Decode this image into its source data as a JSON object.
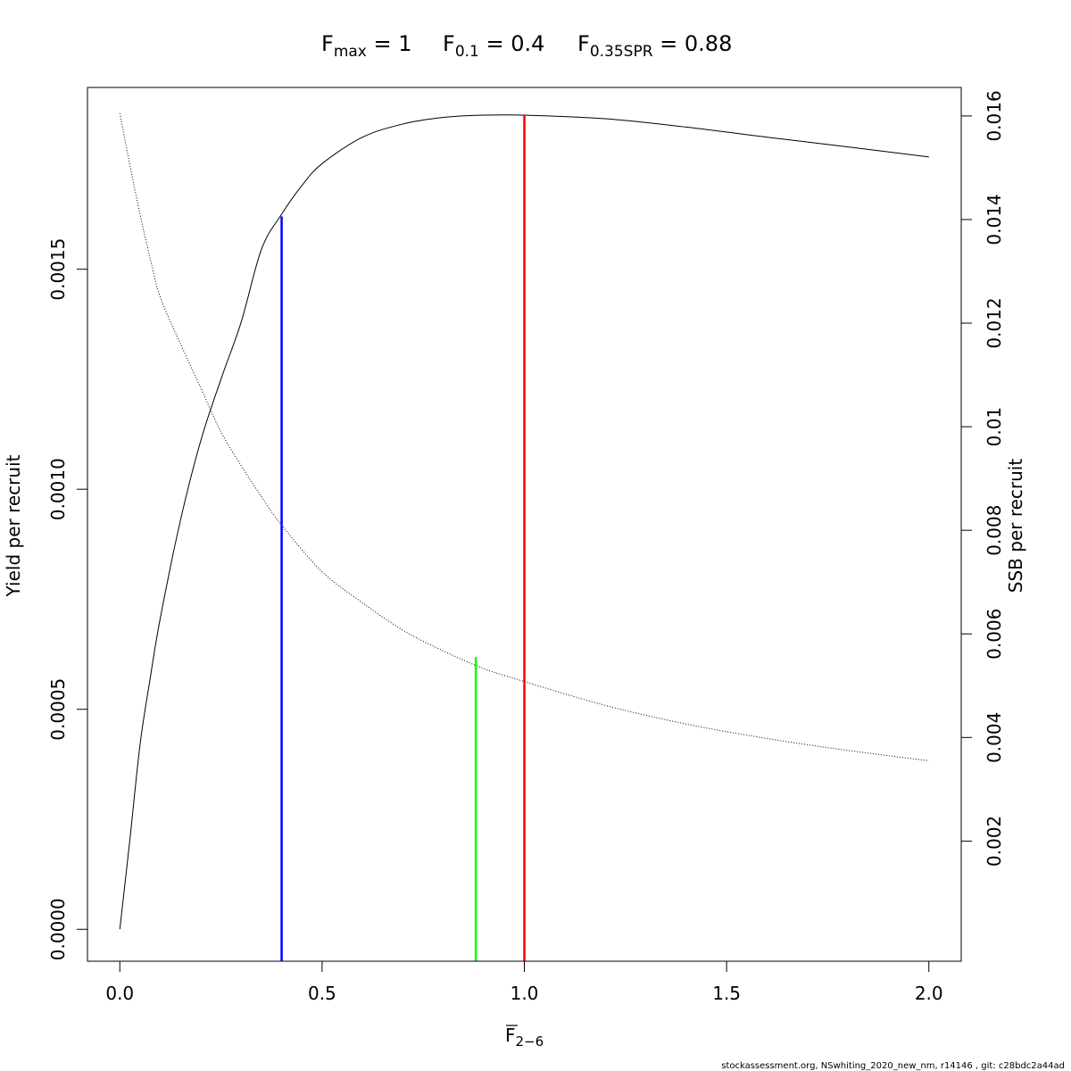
{
  "title": {
    "fmax": {
      "base": "F",
      "sub": "max",
      "rest": " = 1"
    },
    "f01": {
      "base": "F",
      "sub": "0.1",
      "rest": " = 0.4"
    },
    "f35": {
      "base": "F",
      "sub": "0.35SPR",
      "rest": " = 0.88"
    }
  },
  "footer": "stockassessment.org, NSwhiting_2020_new_nm, r14146 , git: c28bdc2a44ad",
  "chart_data": {
    "type": "line",
    "xlabel": {
      "base": "F",
      "sub": "2−6"
    },
    "ylabel_left": "Yield per recruit",
    "ylabel_right": "SSB per recruit",
    "xlim": [
      -0.08,
      2.08
    ],
    "ylim_left": [
      -7.25e-05,
      0.001913
    ],
    "ylim_right": [
      -0.00032,
      0.01655
    ],
    "x_ticks": [
      "0.0",
      "0.5",
      "1.0",
      "1.5",
      "2.0"
    ],
    "y_left_ticks": [
      "0.0000",
      "0.0005",
      "0.0010",
      "0.0015"
    ],
    "y_right_ticks": [
      "0.002",
      "0.004",
      "0.006",
      "0.008",
      "0.01",
      "0.012",
      "0.014",
      "0.016"
    ],
    "grid": false,
    "series": [
      {
        "axis": "left",
        "style": "solid",
        "color": "#000000",
        "x": [
          0.0,
          0.025,
          0.05,
          0.075,
          0.1,
          0.15,
          0.2,
          0.25,
          0.3,
          0.35,
          0.4,
          0.45,
          0.5,
          0.6,
          0.7,
          0.8,
          0.9,
          1.0,
          1.2,
          1.4,
          1.6,
          1.8,
          2.0
        ],
        "y": [
          0.0,
          0.000205,
          0.00042,
          0.00057,
          0.000707,
          0.00093,
          0.00111,
          0.00125,
          0.00138,
          0.001545,
          0.001625,
          0.00169,
          0.00174,
          0.0018,
          0.00183,
          0.001845,
          0.00185,
          0.00185,
          0.001842,
          0.001823,
          0.0018,
          0.001778,
          0.001755
        ]
      },
      {
        "axis": "right",
        "style": "dotted",
        "color": "#000000",
        "x": [
          0.0,
          0.025,
          0.05,
          0.075,
          0.1,
          0.15,
          0.2,
          0.25,
          0.3,
          0.35,
          0.4,
          0.5,
          0.6,
          0.7,
          0.8,
          0.9,
          1.0,
          1.2,
          1.4,
          1.6,
          1.8,
          2.0
        ],
        "y": [
          0.01605,
          0.01505,
          0.0141,
          0.01325,
          0.0125,
          0.0116,
          0.01075,
          0.0099,
          0.00925,
          0.00865,
          0.0081,
          0.0072,
          0.0066,
          0.00607,
          0.00567,
          0.00533,
          0.00508,
          0.00462,
          0.00426,
          0.00398,
          0.00375,
          0.00355
        ]
      }
    ],
    "reference_lines": [
      {
        "x": 0.4,
        "axis": "left",
        "y": 0.00162,
        "color": "#0000ff"
      },
      {
        "x": 0.88,
        "axis": "right",
        "y": 0.00555,
        "color": "#00ff00"
      },
      {
        "x": 1.0,
        "axis": "left",
        "y": 0.00185,
        "color": "#ff0000"
      }
    ]
  }
}
